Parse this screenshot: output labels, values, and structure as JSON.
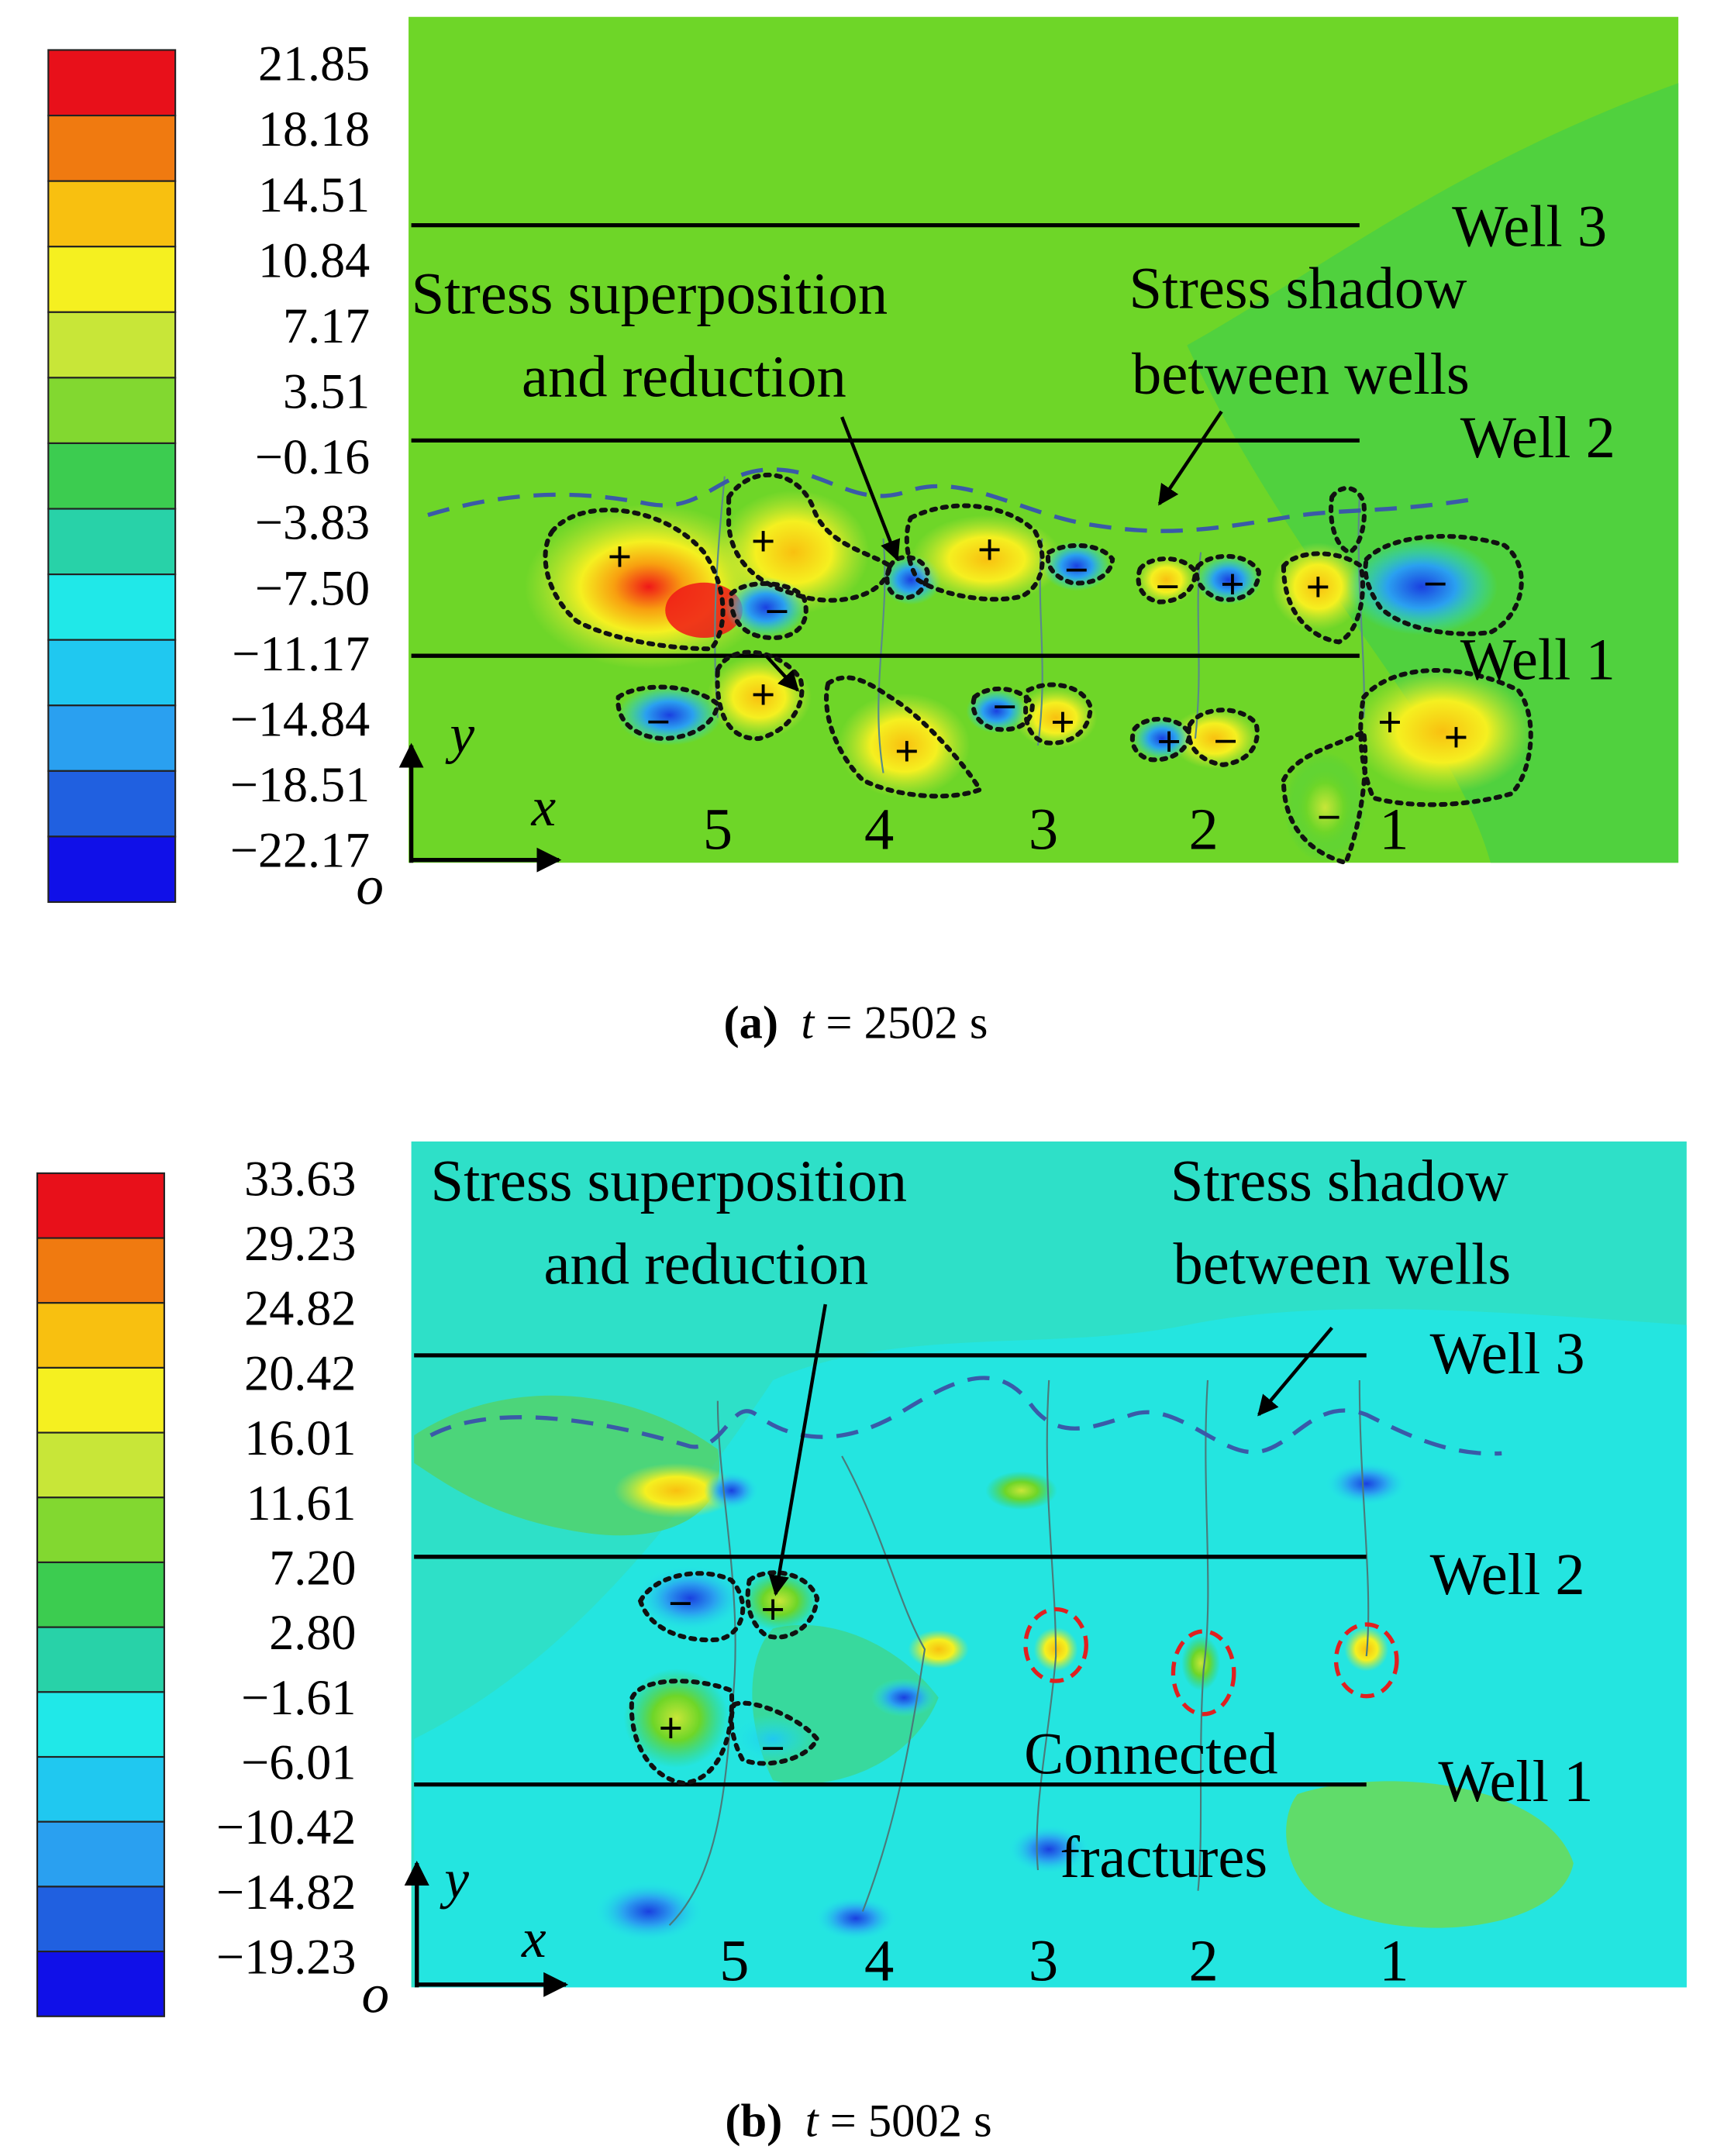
{
  "figure": {
    "panel_a": {
      "caption_letter": "(a)",
      "caption_var": "t",
      "caption_rest": " = 2502 s",
      "colorbar": [
        "21.85",
        "18.18",
        "14.51",
        "10.84",
        "7.17",
        "3.51",
        "−0.16",
        "−3.83",
        "−7.50",
        "−11.17",
        "−14.84",
        "−18.51",
        "−22.17"
      ],
      "colors": [
        "#e8101a",
        "#f07a10",
        "#f8c010",
        "#f5f020",
        "#c8e638",
        "#82d830",
        "#3ccc50",
        "#28d2a8",
        "#20e8e8",
        "#20c8f0",
        "#2aa0f0",
        "#2060e0",
        "#1010e8"
      ],
      "wells": [
        "Well 3",
        "Well 2",
        "Well 1"
      ],
      "annotation_superposition": [
        "Stress superposition",
        "and reduction"
      ],
      "annotation_shadow": [
        "Stress shadow",
        "between wells"
      ],
      "fractures": [
        "5",
        "4",
        "3",
        "2",
        "1"
      ],
      "signs": [
        "+",
        "+",
        "−",
        "+",
        "+",
        "−",
        "+",
        "−",
        "+",
        "−",
        "−",
        "+",
        "+",
        "−",
        "+",
        "−",
        "+",
        "−",
        "+"
      ]
    },
    "panel_b": {
      "caption_letter": "(b)",
      "caption_var": "t",
      "caption_rest": " = 5002 s",
      "colorbar": [
        "33.63",
        "29.23",
        "24.82",
        "20.42",
        "16.01",
        "11.61",
        "7.20",
        "2.80",
        "−1.61",
        "−6.01",
        "−10.42",
        "−14.82",
        "−19.23"
      ],
      "colors": [
        "#e8101a",
        "#f07a10",
        "#f8c010",
        "#f5f020",
        "#c8e638",
        "#82d830",
        "#3ccc50",
        "#28d2a8",
        "#20e8e8",
        "#20c8f0",
        "#2aa0f0",
        "#2060e0",
        "#1010e8"
      ],
      "wells": [
        "Well 3",
        "Well 2",
        "Well 1"
      ],
      "annotation_superposition": [
        "Stress superposition",
        "and reduction"
      ],
      "annotation_shadow": [
        "Stress shadow",
        "between wells"
      ],
      "annotation_connected": [
        "Connected",
        "fractures"
      ],
      "fractures": [
        "5",
        "4",
        "3",
        "2",
        "1"
      ],
      "signs": [
        "−",
        "+",
        "+",
        "−"
      ]
    },
    "axes": {
      "y": "y",
      "x": "x",
      "origin": "o"
    },
    "colors": {
      "field_a": "#6ed628",
      "field_b": "#2ee0c8",
      "contour": "#111111",
      "shadow_line": "#3a5aa8",
      "connected_marker": "#e02020"
    }
  }
}
